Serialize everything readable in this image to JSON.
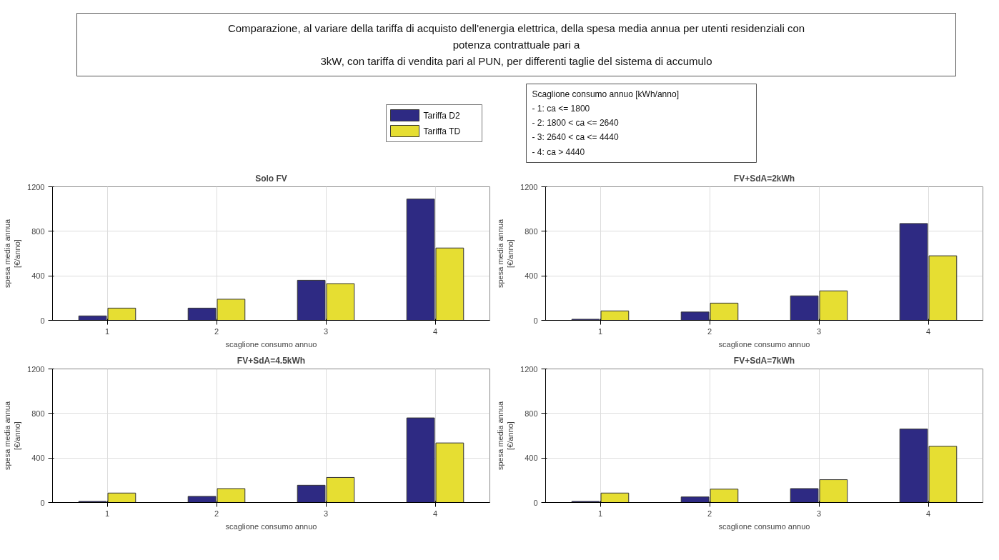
{
  "chart_data": [
    {
      "type": "bar",
      "title": "Solo FV",
      "xlabel": "scaglione consumo annuo",
      "ylabel": "spesa media annua\n[€/anno]",
      "categories": [
        "1",
        "2",
        "3",
        "4"
      ],
      "series": [
        {
          "name": "Tariffa D2",
          "color": "#2e2a83",
          "values": [
            40,
            110,
            360,
            1090
          ]
        },
        {
          "name": "Tariffa TD",
          "color": "#e6de32",
          "values": [
            110,
            190,
            330,
            650
          ]
        }
      ],
      "ylim": [
        0,
        1200
      ],
      "yticks": [
        0,
        400,
        800,
        1200
      ],
      "grid": true,
      "legend": "top",
      "annotations": [
        "Comparazione, al variare della tariffa di acquisto dell'energia elettrica, della spesa media annua per utenti residenziali con\npotenza contrattuale pari a\n3kW, con tariffa di vendita pari al PUN, per differenti taglie del sistema di accumulo",
        "Scaglione consumo annuo [kWh/anno]\n - 1: ca <= 1800\n - 2: 1800 < ca <= 2640\n - 3: 2640 < ca <= 4440\n - 4: ca > 4440"
      ]
    },
    {
      "type": "bar",
      "title": "FV+SdA=2kWh",
      "xlabel": "scaglione consumo annuo",
      "ylabel": "spesa media annua\n[€/anno]",
      "categories": [
        "1",
        "2",
        "3",
        "4"
      ],
      "series": [
        {
          "color": "#2e2a83",
          "values": [
            10,
            75,
            220,
            870
          ]
        },
        {
          "color": "#e6de32",
          "values": [
            85,
            155,
            265,
            580
          ]
        }
      ],
      "ylim": [
        0,
        1200
      ],
      "yticks": [
        0,
        400,
        800,
        1200
      ],
      "grid": true
    },
    {
      "type": "bar",
      "title": "FV+SdA=4.5kWh",
      "xlabel": "scaglione consumo annuo",
      "ylabel": "spesa media annua\n[€/anno]",
      "categories": [
        "1",
        "2",
        "3",
        "4"
      ],
      "series": [
        {
          "color": "#2e2a83",
          "values": [
            10,
            55,
            155,
            760
          ]
        },
        {
          "color": "#e6de32",
          "values": [
            85,
            125,
            225,
            535
          ]
        }
      ],
      "ylim": [
        0,
        1200
      ],
      "yticks": [
        0,
        400,
        800,
        1200
      ],
      "grid": true
    },
    {
      "type": "bar",
      "title": "FV+SdA=7kWh",
      "xlabel": "scaglione consumo annuo",
      "ylabel": "spesa media annua\n[€/anno]",
      "categories": [
        "1",
        "2",
        "3",
        "4"
      ],
      "series": [
        {
          "color": "#2e2a83",
          "values": [
            10,
            50,
            125,
            660
          ]
        },
        {
          "color": "#e6de32",
          "values": [
            85,
            120,
            205,
            505
          ]
        }
      ],
      "ylim": [
        0,
        1200
      ],
      "yticks": [
        0,
        400,
        800,
        1200
      ],
      "grid": true
    }
  ]
}
